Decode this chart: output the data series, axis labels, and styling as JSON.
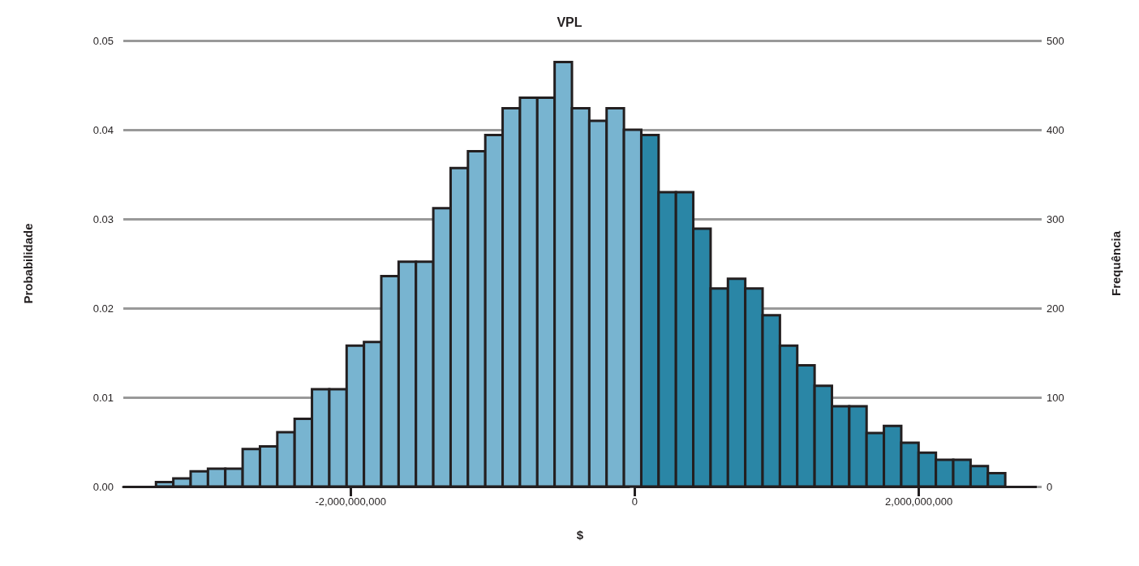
{
  "chart_data": {
    "type": "histogram",
    "title": "VPL",
    "xlabel": "$",
    "ylabel": "Probabilidade",
    "y2label": "Frequência",
    "bins": [
      -3370000000,
      -3248000000,
      -3126000000,
      -3004000000,
      -2882000000,
      -2760000000,
      -2638000000,
      -2516000000,
      -2394000000,
      -2272000000,
      -2150000000,
      -2028000000,
      -1906000000,
      -1784000000,
      -1662000000,
      -1540000000,
      -1418000000,
      -1296000000,
      -1174000000,
      -1052000000,
      -930000000,
      -808000000,
      -686000000,
      -564000000,
      -442000000,
      -320000000,
      -198000000,
      -76000000,
      46000000,
      168000000,
      290000000,
      412000000,
      534000000,
      656000000,
      778000000,
      900000000,
      1022000000,
      1144000000,
      1266000000,
      1388000000,
      1510000000,
      1632000000,
      1754000000,
      1876000000,
      1998000000,
      2120000000,
      2242000000,
      2364000000,
      2486000000,
      2608000000
    ],
    "series": [
      {
        "axis": "y2",
        "values": [
          5,
          9,
          17,
          20,
          20,
          42,
          45,
          61,
          76,
          109,
          109,
          158,
          162,
          236,
          252,
          252,
          312,
          357,
          376,
          394,
          424,
          436,
          436,
          476,
          424,
          410,
          424,
          400,
          394,
          330,
          330,
          289,
          222,
          233,
          222,
          192,
          158,
          136,
          113,
          90,
          90,
          60,
          68,
          49,
          38,
          30,
          30,
          23,
          15
        ],
        "colors": [
          "#78b4d0",
          "#78b4d0",
          "#78b4d0",
          "#78b4d0",
          "#78b4d0",
          "#78b4d0",
          "#78b4d0",
          "#78b4d0",
          "#78b4d0",
          "#78b4d0",
          "#78b4d0",
          "#78b4d0",
          "#78b4d0",
          "#78b4d0",
          "#78b4d0",
          "#78b4d0",
          "#78b4d0",
          "#78b4d0",
          "#78b4d0",
          "#78b4d0",
          "#78b4d0",
          "#78b4d0",
          "#78b4d0",
          "#78b4d0",
          "#78b4d0",
          "#78b4d0",
          "#78b4d0",
          "#78b4d0",
          "#2a86a6",
          "#2a86a6",
          "#2a86a6",
          "#2a86a6",
          "#2a86a6",
          "#2a86a6",
          "#2a86a6",
          "#2a86a6",
          "#2a86a6",
          "#2a86a6",
          "#2a86a6",
          "#2a86a6",
          "#2a86a6",
          "#2a86a6",
          "#2a86a6",
          "#2a86a6",
          "#2a86a6",
          "#2a86a6",
          "#2a86a6",
          "#2a86a6",
          "#2a86a6"
        ]
      }
    ],
    "xlim": [
      -3600000000,
      2830000000
    ],
    "xticks": [
      {
        "value": -2000000000,
        "label": "-2,000,000,000"
      },
      0,
      {
        "value": 2000000000,
        "label": "2,000,000,000"
      }
    ],
    "ylim": [
      0,
      0.05
    ],
    "yticks": [
      {
        "value": 0,
        "label": "0.00"
      },
      {
        "value": 0.01,
        "label": "0.01"
      },
      {
        "value": 0.02,
        "label": "0.02"
      },
      {
        "value": 0.03,
        "label": "0.03"
      },
      {
        "value": 0.04,
        "label": "0.04"
      },
      {
        "value": 0.05,
        "label": "0.05"
      }
    ],
    "y2lim": [
      0,
      500
    ],
    "y2ticks": [
      0,
      100,
      200,
      300,
      400,
      500
    ],
    "grid": "y"
  }
}
